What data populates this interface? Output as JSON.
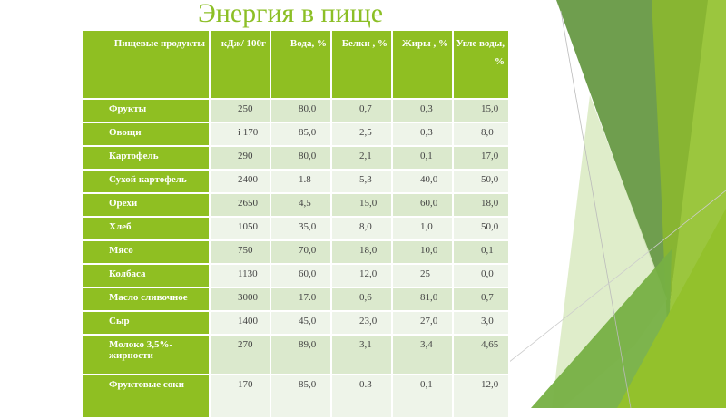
{
  "title": "Энергия в пище",
  "table": {
    "headers": [
      "Пищевые продукты",
      "кДж/ 100г",
      "Вода, %",
      "Белки , %",
      "Жиры , %",
      "Угле воды, %"
    ],
    "rows": [
      [
        "Фрукты",
        "250",
        "80,0",
        "0,7",
        "0,3",
        "15,0"
      ],
      [
        "Овощи",
        "i 170",
        "85,0",
        "2,5",
        "0,3",
        "8,0"
      ],
      [
        "Картофель",
        "290",
        "80,0",
        "2,1",
        "0,1",
        "17,0"
      ],
      [
        "Сухой картофель",
        "2400",
        "1.8",
        "5,3",
        "40,0",
        "50,0"
      ],
      [
        "Орехи",
        "2650",
        "4,5",
        "15,0",
        "60,0",
        "18,0"
      ],
      [
        "Хлеб",
        "1050",
        "35,0",
        "8,0",
        "1,0",
        "50,0"
      ],
      [
        "Мясо",
        "750",
        "70,0",
        "18,0",
        "10,0",
        "0,1"
      ],
      [
        "Колбаса",
        "1130",
        "60,0",
        "12,0",
        "25",
        "0,0"
      ],
      [
        "Масло сливочное",
        "3000",
        "17.0",
        "0,6",
        "81,0",
        "0,7"
      ],
      [
        "Сыр",
        "1400",
        "45,0",
        "23,0",
        "27,0",
        "3,0"
      ],
      [
        "Молоко 3,5%-жирности",
        "270",
        "89,0",
        "3,1",
        "3,4",
        "4,65"
      ],
      [
        "Фруктовые соки",
        "170",
        "85,0",
        "0.3",
        "0,1",
        "12,0"
      ]
    ]
  },
  "colors": {
    "accent": "#8fbf22",
    "title": "#8cbf26",
    "row_dark": "#dbe9cd",
    "row_light": "#eef4e9"
  }
}
